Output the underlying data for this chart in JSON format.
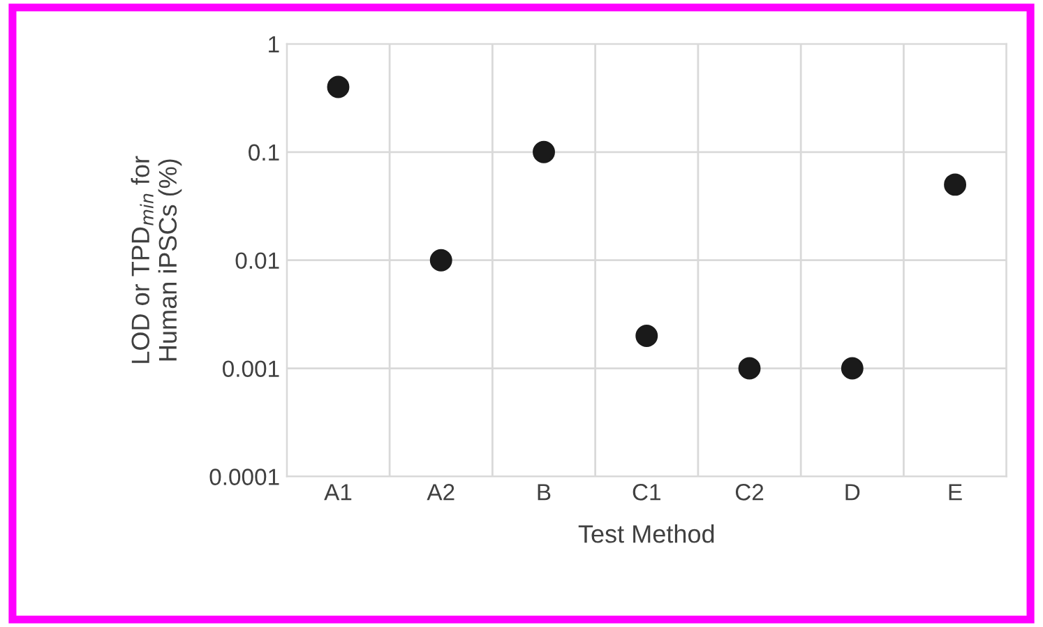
{
  "chart_data": {
    "type": "scatter",
    "xlabel": "Test Method",
    "ylabel": "LOD or TPD$_{min}$ for\nHuman iPSCs (%)",
    "categories": [
      "A1",
      "A2",
      "B",
      "C1",
      "C2",
      "D",
      "E"
    ],
    "values": [
      0.4,
      0.01,
      0.1,
      0.002,
      0.001,
      0.001,
      0.05
    ],
    "color": "#1a1a1a",
    "marker": "circle",
    "log": "y",
    "grid": true,
    "ylim": [
      0.0001,
      1
    ],
    "yticks": [
      {
        "value": 0.0001,
        "label": "0.0001"
      },
      {
        "value": 0.001,
        "label": "0.001"
      },
      {
        "value": 0.01,
        "label": "0.01"
      },
      {
        "value": 0.1,
        "label": "0.1"
      },
      {
        "value": 1,
        "label": "1"
      }
    ]
  }
}
